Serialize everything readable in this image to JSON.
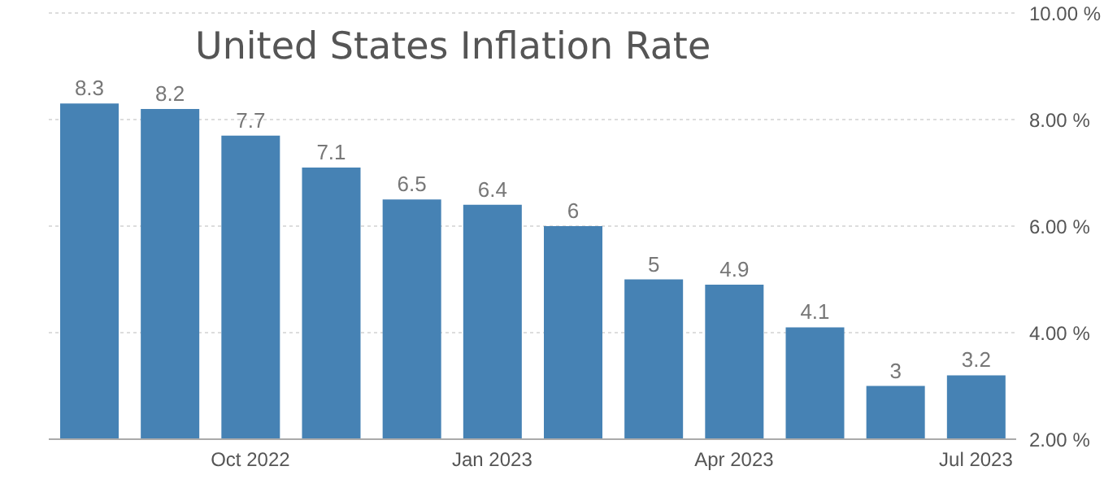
{
  "chart_data": {
    "type": "bar",
    "title": "United States Inflation Rate",
    "categories": [
      null,
      null,
      "Oct 2022",
      null,
      null,
      "Jan 2023",
      null,
      null,
      "Apr 2023",
      null,
      null,
      "Jul 2023"
    ],
    "values": [
      8.3,
      8.2,
      7.7,
      7.1,
      6.5,
      6.4,
      6,
      5,
      4.9,
      4.1,
      3,
      3.2
    ],
    "color": "#4682b4",
    "ylim": [
      2,
      10
    ],
    "yticks": [
      {
        "value": 2,
        "label": "2.00 %"
      },
      {
        "value": 4,
        "label": "4.00 %"
      },
      {
        "value": 6,
        "label": "6.00 %"
      },
      {
        "value": 8,
        "label": "8.00 %"
      },
      {
        "value": 10,
        "label": "10.00 %"
      }
    ],
    "grid": "y",
    "data_labels": true
  }
}
